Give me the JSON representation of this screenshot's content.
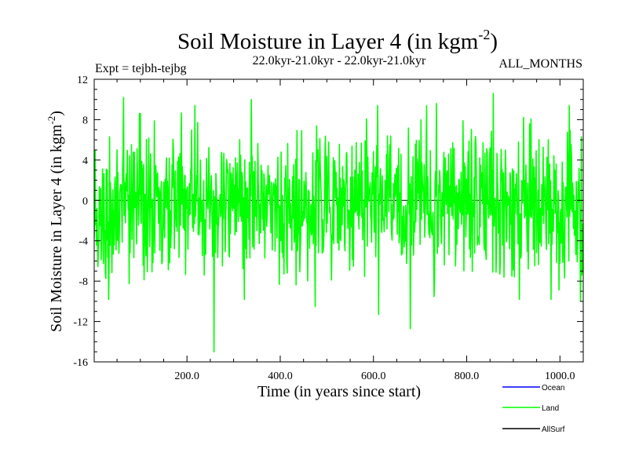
{
  "chart_data": {
    "type": "line",
    "title": "Soil Moisture in Layer 4 (in kgm",
    "title_sup": "-2",
    "title_close": ")",
    "subtitle_left": "Expt = tejbh-tejbg",
    "subtitle_center": "22.0kyr-21.0kyr - 22.0kyr-21.0kyr",
    "subtitle_right": "ALL_MONTHS",
    "xlabel": "Time (in years since start)",
    "ylabel": "Soil Moisture in Layer 4 (in kgm",
    "ylabel_sup": "-2",
    "ylabel_close": ")",
    "xlim": [
      1,
      1050
    ],
    "ylim": [
      -16,
      12
    ],
    "x_ticks": [
      200,
      400,
      600,
      800,
      1000
    ],
    "x_tick_labels": [
      "200.0",
      "400.0",
      "600.0",
      "800.0",
      "1000.0"
    ],
    "y_ticks": [
      -16,
      -12,
      -8,
      -4,
      0,
      4,
      8,
      12
    ],
    "y_tick_labels": [
      "-16",
      "-12",
      "-8",
      "-4",
      "0",
      "4",
      "8",
      "12"
    ],
    "zero_line": 0,
    "series": [
      {
        "name": "Ocean",
        "color": "#0000ff",
        "values": []
      },
      {
        "name": "Land",
        "color": "#00ff00",
        "generator": {
          "n_points": 1050,
          "start": 1,
          "step": 1,
          "mean": -0.4,
          "sd": 3.6,
          "seed": 20871
        },
        "notable_points": [
          {
            "x": 25,
            "y": -7.2
          },
          {
            "x": 64,
            "y": 10.2
          },
          {
            "x": 258,
            "y": -15.0
          },
          {
            "x": 338,
            "y": 10.0
          },
          {
            "x": 475,
            "y": -10.5
          },
          {
            "x": 611,
            "y": -11.3
          },
          {
            "x": 679,
            "y": -12.7
          },
          {
            "x": 735,
            "y": 9.6
          },
          {
            "x": 857,
            "y": 10.6
          },
          {
            "x": 1044,
            "y": -10.0
          },
          {
            "x": 1046,
            "y": 6.3
          }
        ]
      },
      {
        "name": "AllSurf",
        "color": "#000000",
        "values": []
      }
    ],
    "legend_position": "bottom-right"
  }
}
